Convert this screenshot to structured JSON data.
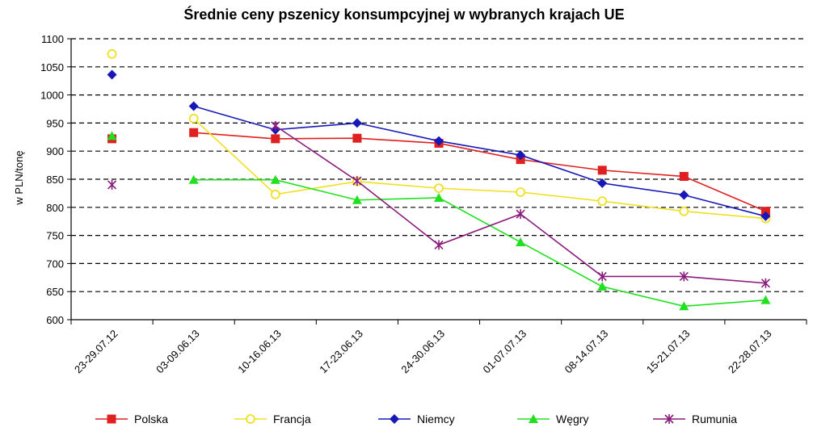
{
  "chart_data": {
    "type": "line",
    "title": "Średnie ceny pszenicy konsumpcyjnej w wybranych krajach UE",
    "xlabel": "",
    "ylabel": "w PLN/tonę",
    "ylim": [
      600,
      1100
    ],
    "yticks": [
      600,
      650,
      700,
      750,
      800,
      850,
      900,
      950,
      1000,
      1050,
      1100
    ],
    "grid": "horizontal-dashed",
    "legend_position": "bottom",
    "categories": [
      "23-29.07.12",
      "03-09.06.13",
      "10-16.06.13",
      "17-23.06.13",
      "24-30.06.13",
      "01-07.07.13",
      "08-14.07.13",
      "15-21.07.13",
      "22-28.07.13"
    ],
    "series": [
      {
        "name": "Polska",
        "color": "#e02020",
        "marker": "square",
        "values": [
          922,
          933,
          922,
          923,
          914,
          885,
          866,
          855,
          793
        ]
      },
      {
        "name": "Francja",
        "color": "#f0e020",
        "marker": "circle",
        "values": [
          1073,
          958,
          823,
          846,
          834,
          827,
          811,
          793,
          780
        ]
      },
      {
        "name": "Niemcy",
        "color": "#1818b8",
        "marker": "diamond",
        "values": [
          1036,
          980,
          938,
          950,
          918,
          893,
          843,
          822,
          784
        ]
      },
      {
        "name": "Węgry",
        "color": "#20e020",
        "marker": "triangle",
        "values": [
          927,
          849,
          849,
          813,
          817,
          738,
          659,
          624,
          635
        ]
      },
      {
        "name": "Rumunia",
        "color": "#8a1c7c",
        "marker": "star",
        "values": [
          840,
          null,
          945,
          847,
          733,
          788,
          677,
          677,
          665
        ]
      }
    ]
  }
}
